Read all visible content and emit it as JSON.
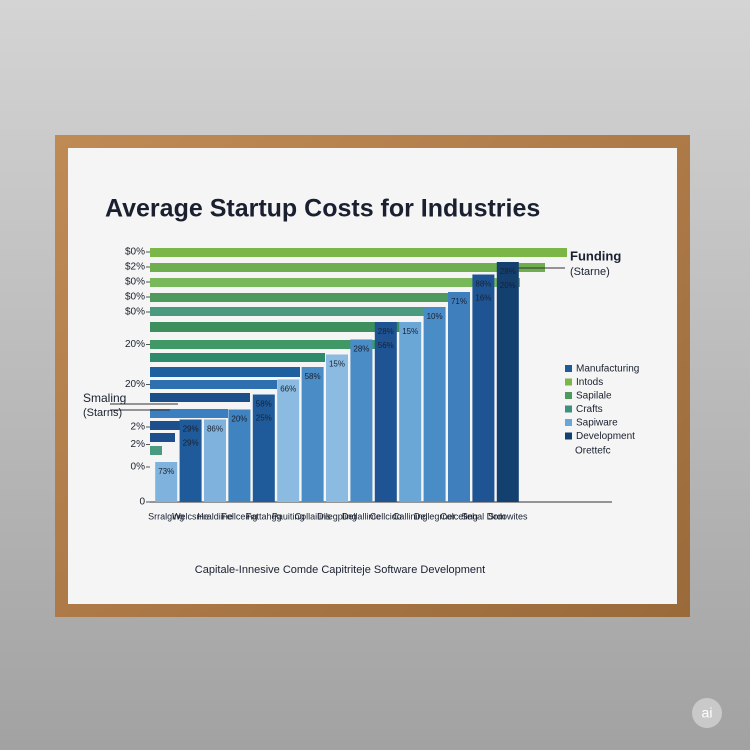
{
  "chart_data": {
    "type": "bar",
    "title": "Average Startup Costs for Industries",
    "categories": [
      "Srralging",
      "Welcsme",
      "Hraldiine",
      "Fellceing",
      "Fattahgg",
      "Pauiting",
      "Collailins",
      "Dilegpling",
      "Dellallime",
      "Cellcido",
      "Callining",
      "Dellegrner",
      "Colcefing",
      "Sehal Dom",
      "Srdowites"
    ],
    "values": [
      16,
      33,
      33,
      37,
      43,
      49,
      54,
      59,
      65,
      72,
      72,
      78,
      84,
      91,
      96
    ],
    "colors": [
      "#7fb2dc",
      "#1f5a9a",
      "#7fb2dc",
      "#3f83c0",
      "#1f5a9a",
      "#8bbbe0",
      "#4a8cc6",
      "#8bbbe0",
      "#4a8cc6",
      "#1e5494",
      "#6aa6d6",
      "#4a8cc6",
      "#3f7fbe",
      "#1e5494",
      "#14406f"
    ],
    "bar_labels": [
      [
        "73%"
      ],
      [
        "29%",
        "29%"
      ],
      [
        "86%"
      ],
      [
        "20%"
      ],
      [
        "58%",
        "25%"
      ],
      [
        "66%"
      ],
      [
        "58%"
      ],
      [
        "15%"
      ],
      [
        "28%"
      ],
      [
        "28%",
        "56%"
      ],
      [
        "15%"
      ],
      [
        "10%"
      ],
      [
        "71%"
      ],
      [
        "88%",
        "16%"
      ],
      [
        "28%",
        "20%"
      ]
    ],
    "ylim": [
      0,
      100
    ],
    "yticks": [
      {
        "value": 100,
        "label": "$0%"
      },
      {
        "value": 94,
        "label": "$2%"
      },
      {
        "value": 88,
        "label": "$0%"
      },
      {
        "value": 82,
        "label": "$0%"
      },
      {
        "value": 76,
        "label": "$0%"
      },
      {
        "value": 63,
        "label": "20%"
      },
      {
        "value": 47,
        "label": "20%"
      },
      {
        "value": 30,
        "label": "2%"
      },
      {
        "value": 23,
        "label": "2%"
      },
      {
        "value": 14,
        "label": "0%"
      },
      0
    ],
    "xlabel": "Capitale-Innesive Comde Capitriteje Software Development",
    "annotations": {
      "right": [
        "Funding",
        "(Starne)"
      ],
      "left": [
        "Smaling",
        "(Starns)"
      ]
    },
    "legend": [
      {
        "name": "Manufacturing",
        "color": "#1f5a9a"
      },
      {
        "name": "Intods",
        "color": "#7ab648"
      },
      {
        "name": "Sapilale",
        "color": "#4d9a5c"
      },
      {
        "name": "Crafts",
        "color": "#3f8f80"
      },
      {
        "name": "Sapiware",
        "color": "#6aa6d6"
      },
      {
        "name": "Development",
        "color": "#14406f"
      }
    ],
    "legend_note": "Orettefc",
    "watermark": "ai"
  }
}
